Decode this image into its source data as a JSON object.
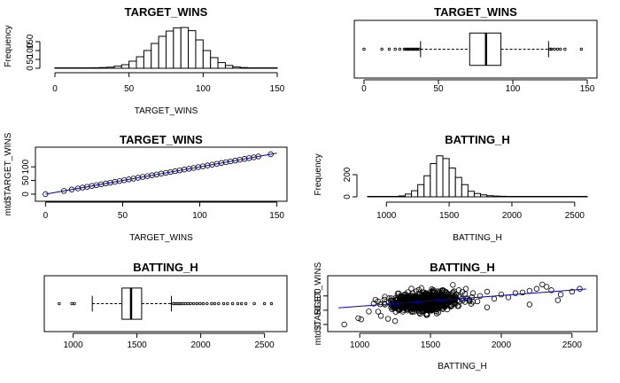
{
  "chart_data": [
    {
      "type": "histogram",
      "title": "TARGET_WINS",
      "xlabel": "TARGET_WINS",
      "ylabel": "Frequency",
      "xlim": [
        0,
        150
      ],
      "ylim": [
        0,
        250
      ],
      "xticks": [
        0,
        50,
        100,
        150
      ],
      "yticks": [
        0,
        50,
        100,
        150
      ],
      "bin_width": 5,
      "bins": [
        {
          "x0": 0,
          "x1": 5,
          "count": 1
        },
        {
          "x0": 5,
          "x1": 10,
          "count": 1
        },
        {
          "x0": 10,
          "x1": 15,
          "count": 1
        },
        {
          "x0": 15,
          "x1": 20,
          "count": 1
        },
        {
          "x0": 20,
          "x1": 25,
          "count": 2
        },
        {
          "x0": 25,
          "x1": 30,
          "count": 3
        },
        {
          "x0": 30,
          "x1": 35,
          "count": 4
        },
        {
          "x0": 35,
          "x1": 40,
          "count": 6
        },
        {
          "x0": 40,
          "x1": 45,
          "count": 12
        },
        {
          "x0": 45,
          "x1": 50,
          "count": 20
        },
        {
          "x0": 50,
          "x1": 55,
          "count": 40
        },
        {
          "x0": 55,
          "x1": 60,
          "count": 65
        },
        {
          "x0": 60,
          "x1": 65,
          "count": 100
        },
        {
          "x0": 65,
          "x1": 70,
          "count": 140
        },
        {
          "x0": 70,
          "x1": 75,
          "count": 180
        },
        {
          "x0": 75,
          "x1": 80,
          "count": 210
        },
        {
          "x0": 80,
          "x1": 85,
          "count": 228
        },
        {
          "x0": 85,
          "x1": 90,
          "count": 230
        },
        {
          "x0": 90,
          "x1": 95,
          "count": 212
        },
        {
          "x0": 95,
          "x1": 100,
          "count": 160
        },
        {
          "x0": 100,
          "x1": 105,
          "count": 100
        },
        {
          "x0": 105,
          "x1": 110,
          "count": 60
        },
        {
          "x0": 110,
          "x1": 115,
          "count": 32
        },
        {
          "x0": 115,
          "x1": 120,
          "count": 16
        },
        {
          "x0": 120,
          "x1": 125,
          "count": 8
        },
        {
          "x0": 125,
          "x1": 130,
          "count": 4
        },
        {
          "x0": 130,
          "x1": 135,
          "count": 2
        },
        {
          "x0": 135,
          "x1": 140,
          "count": 1
        },
        {
          "x0": 140,
          "x1": 145,
          "count": 1
        },
        {
          "x0": 145,
          "x1": 150,
          "count": 1
        }
      ]
    },
    {
      "type": "boxplot",
      "title": "TARGET_WINS",
      "xlim": [
        0,
        150
      ],
      "xticks": [
        0,
        50,
        100,
        150
      ],
      "box": {
        "whisker_low": 38,
        "q1": 71,
        "median": 82,
        "q3": 92,
        "whisker_high": 124
      },
      "outliers": [
        0,
        12,
        17,
        21,
        24,
        27,
        28,
        29,
        30,
        31,
        32,
        33,
        34,
        35,
        36,
        37,
        125,
        126,
        128,
        130,
        132,
        135,
        146
      ]
    },
    {
      "type": "scatter",
      "title": "TARGET_WINS",
      "xlabel": "TARGET_WINS",
      "ylabel": "mtd$TARGET_WINS",
      "xlim": [
        0,
        150
      ],
      "ylim": [
        0,
        146
      ],
      "xticks": [
        0,
        50,
        100,
        150
      ],
      "yticks": [
        0,
        50,
        100
      ],
      "points": [
        [
          0,
          0
        ],
        [
          12,
          12
        ],
        [
          17,
          17
        ],
        [
          21,
          21
        ],
        [
          24,
          24
        ],
        [
          27,
          27
        ],
        [
          30,
          30
        ],
        [
          33,
          33
        ],
        [
          36,
          36
        ],
        [
          39,
          39
        ],
        [
          42,
          42
        ],
        [
          45,
          45
        ],
        [
          48,
          48
        ],
        [
          51,
          51
        ],
        [
          54,
          54
        ],
        [
          57,
          57
        ],
        [
          60,
          60
        ],
        [
          63,
          63
        ],
        [
          66,
          66
        ],
        [
          69,
          69
        ],
        [
          72,
          72
        ],
        [
          75,
          75
        ],
        [
          78,
          78
        ],
        [
          81,
          81
        ],
        [
          84,
          84
        ],
        [
          87,
          87
        ],
        [
          90,
          90
        ],
        [
          93,
          93
        ],
        [
          96,
          96
        ],
        [
          99,
          99
        ],
        [
          102,
          102
        ],
        [
          105,
          105
        ],
        [
          108,
          108
        ],
        [
          111,
          111
        ],
        [
          114,
          114
        ],
        [
          117,
          117
        ],
        [
          120,
          120
        ],
        [
          123,
          123
        ],
        [
          126,
          126
        ],
        [
          129,
          129
        ],
        [
          132,
          132
        ],
        [
          135,
          135
        ],
        [
          138,
          138
        ],
        [
          146,
          146
        ]
      ],
      "fit_line": {
        "intercept": 0,
        "slope": 1
      }
    },
    {
      "type": "histogram",
      "title": "BATTING_H",
      "xlabel": "BATTING_H",
      "ylabel": "Frequency",
      "xlim": [
        850,
        2600
      ],
      "ylim": [
        0,
        400
      ],
      "xticks": [
        1000,
        1500,
        2000,
        2500
      ],
      "yticks": [
        0,
        200
      ],
      "bin_width": 50,
      "bins": [
        {
          "x0": 850,
          "x1": 900,
          "count": 1
        },
        {
          "x0": 900,
          "x1": 950,
          "count": 1
        },
        {
          "x0": 950,
          "x1": 1000,
          "count": 1
        },
        {
          "x0": 1000,
          "x1": 1050,
          "count": 2
        },
        {
          "x0": 1050,
          "x1": 1100,
          "count": 3
        },
        {
          "x0": 1100,
          "x1": 1150,
          "count": 8
        },
        {
          "x0": 1150,
          "x1": 1200,
          "count": 25
        },
        {
          "x0": 1200,
          "x1": 1250,
          "count": 55
        },
        {
          "x0": 1250,
          "x1": 1300,
          "count": 110
        },
        {
          "x0": 1300,
          "x1": 1350,
          "count": 190
        },
        {
          "x0": 1350,
          "x1": 1400,
          "count": 300
        },
        {
          "x0": 1400,
          "x1": 1450,
          "count": 370
        },
        {
          "x0": 1450,
          "x1": 1500,
          "count": 345
        },
        {
          "x0": 1500,
          "x1": 1550,
          "count": 260
        },
        {
          "x0": 1550,
          "x1": 1600,
          "count": 175
        },
        {
          "x0": 1600,
          "x1": 1650,
          "count": 110
        },
        {
          "x0": 1650,
          "x1": 1700,
          "count": 50
        },
        {
          "x0": 1700,
          "x1": 1750,
          "count": 30
        },
        {
          "x0": 1750,
          "x1": 1800,
          "count": 18
        },
        {
          "x0": 1800,
          "x1": 1850,
          "count": 10
        },
        {
          "x0": 1850,
          "x1": 1900,
          "count": 7
        },
        {
          "x0": 1900,
          "x1": 1950,
          "count": 5
        },
        {
          "x0": 1950,
          "x1": 2000,
          "count": 3
        },
        {
          "x0": 2000,
          "x1": 2050,
          "count": 3
        },
        {
          "x0": 2050,
          "x1": 2100,
          "count": 2
        },
        {
          "x0": 2100,
          "x1": 2150,
          "count": 2
        },
        {
          "x0": 2150,
          "x1": 2200,
          "count": 2
        },
        {
          "x0": 2200,
          "x1": 2250,
          "count": 2
        },
        {
          "x0": 2250,
          "x1": 2300,
          "count": 1
        },
        {
          "x0": 2300,
          "x1": 2350,
          "count": 1
        },
        {
          "x0": 2350,
          "x1": 2400,
          "count": 1
        },
        {
          "x0": 2400,
          "x1": 2450,
          "count": 1
        },
        {
          "x0": 2450,
          "x1": 2500,
          "count": 1
        },
        {
          "x0": 2500,
          "x1": 2550,
          "count": 1
        },
        {
          "x0": 2550,
          "x1": 2600,
          "count": 1
        }
      ]
    },
    {
      "type": "boxplot",
      "title": "BATTING_H",
      "xlim": [
        850,
        2600
      ],
      "xticks": [
        1000,
        1500,
        2000,
        2500
      ],
      "box": {
        "whisker_low": 1150,
        "q1": 1383,
        "median": 1454,
        "q3": 1537,
        "whisker_high": 1770
      },
      "outliers": [
        891,
        990,
        1010,
        1785,
        1800,
        1815,
        1830,
        1845,
        1860,
        1880,
        1900,
        1920,
        1945,
        1970,
        1995,
        2020,
        2050,
        2085,
        2110,
        2140,
        2180,
        2210,
        2250,
        2290,
        2320,
        2354,
        2420,
        2500,
        2554
      ]
    },
    {
      "type": "scatter",
      "title": "BATTING_H",
      "xlabel": "BATTING_H",
      "ylabel": "mtd$TARGET_WINS",
      "xlim": [
        850,
        2600
      ],
      "ylim": [
        0,
        146
      ],
      "xticks": [
        1000,
        1500,
        2000,
        2500
      ],
      "yticks": [
        0,
        50,
        100
      ],
      "cloud": {
        "x_center": 1460,
        "x_sd": 110,
        "y_intercept": 25,
        "y_slope": 0.038,
        "y_sd": 15,
        "n": 900,
        "seed": 7
      },
      "points": [
        [
          891,
          0
        ],
        [
          990,
          22
        ],
        [
          1010,
          18
        ],
        [
          1130,
          45
        ],
        [
          1150,
          30
        ],
        [
          1200,
          20
        ],
        [
          1250,
          12
        ],
        [
          1700,
          120
        ],
        [
          1750,
          125
        ],
        [
          1800,
          110
        ],
        [
          1850,
          100
        ],
        [
          1900,
          115
        ],
        [
          1950,
          90
        ],
        [
          2000,
          105
        ],
        [
          2050,
          95
        ],
        [
          2100,
          110
        ],
        [
          2150,
          112
        ],
        [
          2200,
          118
        ],
        [
          2250,
          125
        ],
        [
          2290,
          140
        ],
        [
          2320,
          132
        ],
        [
          2354,
          120
        ],
        [
          2420,
          105
        ],
        [
          2500,
          115
        ],
        [
          2554,
          125
        ],
        [
          2200,
          70
        ],
        [
          2400,
          85
        ],
        [
          1900,
          60
        ]
      ],
      "fit_line": {
        "intercept": 26.2,
        "slope": 0.0377
      }
    }
  ]
}
